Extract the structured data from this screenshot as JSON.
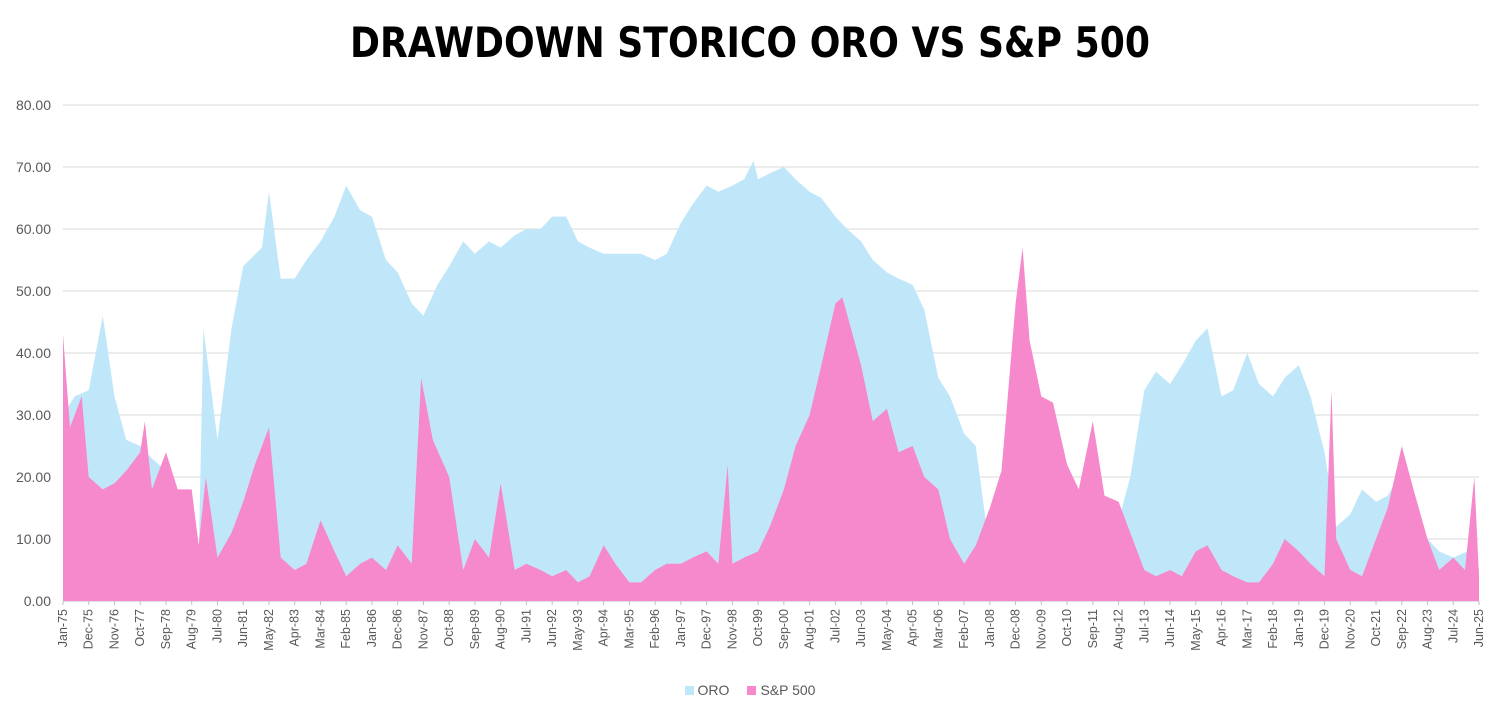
{
  "chart_data": {
    "type": "area",
    "title": "DRAWDOWN STORICO ORO VS S&P 500",
    "xlabel": "",
    "ylabel": "",
    "ylim": [
      0,
      80
    ],
    "yticks": [
      "0.00",
      "10.00",
      "20.00",
      "30.00",
      "40.00",
      "50.00",
      "60.00",
      "70.00",
      "80.00"
    ],
    "grid": true,
    "legend_position": "bottom",
    "x_start": "Jan-75",
    "x_end": "Jun-25",
    "x_tick_labels": [
      "Jan-75",
      "Dec-75",
      "Nov-76",
      "Oct-77",
      "Sep-78",
      "Aug-79",
      "Jul-80",
      "Jun-81",
      "May-82",
      "Apr-83",
      "Mar-84",
      "Feb-85",
      "Jan-86",
      "Dec-86",
      "Nov-87",
      "Oct-88",
      "Sep-89",
      "Aug-90",
      "Jul-91",
      "Jun-92",
      "May-93",
      "Apr-94",
      "Mar-95",
      "Feb-96",
      "Jan-97",
      "Dec-97",
      "Nov-98",
      "Oct-99",
      "Sep-00",
      "Aug-01",
      "Jul-02",
      "Jun-03",
      "May-04",
      "Apr-05",
      "Mar-06",
      "Feb-07",
      "Jan-08",
      "Dec-08",
      "Nov-09",
      "Oct-10",
      "Sep-11",
      "Aug-12",
      "Jul-13",
      "Jun-14",
      "May-15",
      "Apr-16",
      "Mar-17",
      "Feb-18",
      "Jan-19",
      "Dec-19",
      "Nov-20",
      "Oct-21",
      "Sep-22",
      "Aug-23",
      "Jul-24",
      "Jun-25"
    ],
    "series": [
      {
        "name": "ORO",
        "color": "#c0e7f9",
        "points": [
          [
            "Jan-75",
            30
          ],
          [
            "Jun-75",
            33
          ],
          [
            "Dec-75",
            34
          ],
          [
            "Jun-76",
            46
          ],
          [
            "Nov-76",
            33
          ],
          [
            "Apr-77",
            26
          ],
          [
            "Oct-77",
            25
          ],
          [
            "Mar-78",
            23
          ],
          [
            "Sep-78",
            21
          ],
          [
            "Feb-79",
            17
          ],
          [
            "Aug-79",
            14
          ],
          [
            "Nov-79",
            7
          ],
          [
            "Jan-80",
            44
          ],
          [
            "Mar-80",
            38
          ],
          [
            "Jul-80",
            26
          ],
          [
            "Jan-81",
            44
          ],
          [
            "Jun-81",
            54
          ],
          [
            "Feb-82",
            57
          ],
          [
            "May-82",
            66
          ],
          [
            "Oct-82",
            52
          ],
          [
            "Apr-83",
            52
          ],
          [
            "Sep-83",
            55
          ],
          [
            "Mar-84",
            58
          ],
          [
            "Sep-84",
            62
          ],
          [
            "Feb-85",
            67
          ],
          [
            "Aug-85",
            63
          ],
          [
            "Jan-86",
            62
          ],
          [
            "Jul-86",
            55
          ],
          [
            "Dec-86",
            53
          ],
          [
            "Jun-87",
            48
          ],
          [
            "Nov-87",
            46
          ],
          [
            "May-88",
            51
          ],
          [
            "Oct-88",
            54
          ],
          [
            "Apr-89",
            58
          ],
          [
            "Sep-89",
            56
          ],
          [
            "Mar-90",
            58
          ],
          [
            "Aug-90",
            57
          ],
          [
            "Feb-91",
            59
          ],
          [
            "Jul-91",
            60
          ],
          [
            "Jan-92",
            60
          ],
          [
            "Jun-92",
            62
          ],
          [
            "Dec-92",
            62
          ],
          [
            "May-93",
            58
          ],
          [
            "Oct-93",
            57
          ],
          [
            "Apr-94",
            56
          ],
          [
            "Sep-94",
            56
          ],
          [
            "Mar-95",
            56
          ],
          [
            "Aug-95",
            56
          ],
          [
            "Feb-96",
            55
          ],
          [
            "Jul-96",
            56
          ],
          [
            "Jan-97",
            61
          ],
          [
            "Jun-97",
            64
          ],
          [
            "Dec-97",
            67
          ],
          [
            "May-98",
            66
          ],
          [
            "Nov-98",
            67
          ],
          [
            "Apr-99",
            68
          ],
          [
            "Aug-99",
            71
          ],
          [
            "Oct-99",
            68
          ],
          [
            "Mar-00",
            69
          ],
          [
            "Sep-00",
            70
          ],
          [
            "Feb-01",
            68
          ],
          [
            "Aug-01",
            66
          ],
          [
            "Jan-02",
            65
          ],
          [
            "Jul-02",
            62
          ],
          [
            "Dec-02",
            60
          ],
          [
            "Jun-03",
            58
          ],
          [
            "Nov-03",
            55
          ],
          [
            "May-04",
            53
          ],
          [
            "Oct-04",
            52
          ],
          [
            "Apr-05",
            51
          ],
          [
            "Sep-05",
            47
          ],
          [
            "Mar-06",
            36
          ],
          [
            "Aug-06",
            33
          ],
          [
            "Feb-07",
            27
          ],
          [
            "Jul-07",
            25
          ],
          [
            "Jan-08",
            8
          ],
          [
            "Jun-08",
            17
          ],
          [
            "Dec-08",
            20
          ],
          [
            "May-09",
            17
          ],
          [
            "Nov-09",
            8
          ],
          [
            "Apr-10",
            5
          ],
          [
            "Oct-10",
            3
          ],
          [
            "Mar-11",
            2
          ],
          [
            "Sep-11",
            3
          ],
          [
            "Feb-12",
            4
          ],
          [
            "Aug-12",
            13
          ],
          [
            "Jan-13",
            20
          ],
          [
            "Jul-13",
            34
          ],
          [
            "Dec-13",
            37
          ],
          [
            "Jun-14",
            35
          ],
          [
            "Nov-14",
            38
          ],
          [
            "May-15",
            42
          ],
          [
            "Oct-15",
            44
          ],
          [
            "Apr-16",
            33
          ],
          [
            "Sep-16",
            34
          ],
          [
            "Mar-17",
            40
          ],
          [
            "Aug-17",
            35
          ],
          [
            "Feb-18",
            33
          ],
          [
            "Jul-18",
            36
          ],
          [
            "Jan-19",
            38
          ],
          [
            "Jun-19",
            33
          ],
          [
            "Dec-19",
            24
          ],
          [
            "May-20",
            12
          ],
          [
            "Nov-20",
            14
          ],
          [
            "Apr-21",
            18
          ],
          [
            "Oct-21",
            16
          ],
          [
            "Mar-22",
            17
          ],
          [
            "Sep-22",
            21
          ],
          [
            "Feb-23",
            15
          ],
          [
            "Aug-23",
            10
          ],
          [
            "Jan-24",
            8
          ],
          [
            "Jul-24",
            7
          ],
          [
            "Jan-25",
            8
          ],
          [
            "Jun-25",
            5
          ]
        ]
      },
      {
        "name": "S&P 500",
        "color": "#f689cb",
        "points": [
          [
            "Jan-75",
            43
          ],
          [
            "Apr-75",
            28
          ],
          [
            "Sep-75",
            33
          ],
          [
            "Dec-75",
            20
          ],
          [
            "Jun-76",
            18
          ],
          [
            "Nov-76",
            19
          ],
          [
            "Apr-77",
            21
          ],
          [
            "Oct-77",
            24
          ],
          [
            "Dec-77",
            29
          ],
          [
            "Mar-78",
            18
          ],
          [
            "Sep-78",
            24
          ],
          [
            "Feb-79",
            18
          ],
          [
            "Aug-79",
            18
          ],
          [
            "Nov-79",
            9
          ],
          [
            "Feb-80",
            20
          ],
          [
            "Jul-80",
            7
          ],
          [
            "Jan-81",
            11
          ],
          [
            "Jun-81",
            16
          ],
          [
            "Nov-81",
            22
          ],
          [
            "May-82",
            28
          ],
          [
            "Oct-82",
            7
          ],
          [
            "Apr-83",
            5
          ],
          [
            "Sep-83",
            6
          ],
          [
            "Mar-84",
            13
          ],
          [
            "Sep-84",
            8
          ],
          [
            "Feb-85",
            4
          ],
          [
            "Aug-85",
            6
          ],
          [
            "Jan-86",
            7
          ],
          [
            "Jul-86",
            5
          ],
          [
            "Dec-86",
            9
          ],
          [
            "Jun-87",
            6
          ],
          [
            "Oct-87",
            36
          ],
          [
            "Mar-88",
            26
          ],
          [
            "Oct-88",
            20
          ],
          [
            "Apr-89",
            5
          ],
          [
            "Sep-89",
            10
          ],
          [
            "Mar-90",
            7
          ],
          [
            "Aug-90",
            19
          ],
          [
            "Feb-91",
            5
          ],
          [
            "Jul-91",
            6
          ],
          [
            "Jan-92",
            5
          ],
          [
            "Jun-92",
            4
          ],
          [
            "Dec-92",
            5
          ],
          [
            "May-93",
            3
          ],
          [
            "Oct-93",
            4
          ],
          [
            "Apr-94",
            9
          ],
          [
            "Sep-94",
            6
          ],
          [
            "Mar-95",
            3
          ],
          [
            "Aug-95",
            3
          ],
          [
            "Feb-96",
            5
          ],
          [
            "Jul-96",
            6
          ],
          [
            "Jan-97",
            6
          ],
          [
            "Jun-97",
            7
          ],
          [
            "Dec-97",
            8
          ],
          [
            "May-98",
            6
          ],
          [
            "Sep-98",
            22
          ],
          [
            "Nov-98",
            6
          ],
          [
            "Apr-99",
            7
          ],
          [
            "Oct-99",
            8
          ],
          [
            "Mar-00",
            12
          ],
          [
            "Sep-00",
            18
          ],
          [
            "Feb-01",
            25
          ],
          [
            "Aug-01",
            30
          ],
          [
            "Jan-02",
            38
          ],
          [
            "Jul-02",
            48
          ],
          [
            "Oct-02",
            49
          ],
          [
            "Jun-03",
            38
          ],
          [
            "Nov-03",
            29
          ],
          [
            "May-04",
            31
          ],
          [
            "Oct-04",
            24
          ],
          [
            "Apr-05",
            25
          ],
          [
            "Sep-05",
            20
          ],
          [
            "Mar-06",
            18
          ],
          [
            "Aug-06",
            10
          ],
          [
            "Feb-07",
            6
          ],
          [
            "Jul-07",
            9
          ],
          [
            "Jan-08",
            15
          ],
          [
            "Jun-08",
            21
          ],
          [
            "Dec-08",
            48
          ],
          [
            "Mar-09",
            57
          ],
          [
            "Jun-09",
            42
          ],
          [
            "Nov-09",
            33
          ],
          [
            "Apr-10",
            32
          ],
          [
            "Oct-10",
            22
          ],
          [
            "Mar-11",
            18
          ],
          [
            "Sep-11",
            29
          ],
          [
            "Feb-12",
            17
          ],
          [
            "Aug-12",
            16
          ],
          [
            "Jan-13",
            11
          ],
          [
            "Jul-13",
            5
          ],
          [
            "Dec-13",
            4
          ],
          [
            "Jun-14",
            5
          ],
          [
            "Nov-14",
            4
          ],
          [
            "May-15",
            8
          ],
          [
            "Oct-15",
            9
          ],
          [
            "Apr-16",
            5
          ],
          [
            "Sep-16",
            4
          ],
          [
            "Mar-17",
            3
          ],
          [
            "Aug-17",
            3
          ],
          [
            "Feb-18",
            6
          ],
          [
            "Jul-18",
            10
          ],
          [
            "Jan-19",
            8
          ],
          [
            "Jun-19",
            6
          ],
          [
            "Dec-19",
            4
          ],
          [
            "Mar-20",
            34
          ],
          [
            "May-20",
            10
          ],
          [
            "Nov-20",
            5
          ],
          [
            "Apr-21",
            4
          ],
          [
            "Oct-21",
            10
          ],
          [
            "Mar-22",
            15
          ],
          [
            "Sep-22",
            25
          ],
          [
            "Feb-23",
            18
          ],
          [
            "Aug-23",
            10
          ],
          [
            "Jan-24",
            5
          ],
          [
            "Jul-24",
            7
          ],
          [
            "Dec-24",
            5
          ],
          [
            "Apr-25",
            20
          ],
          [
            "Jun-25",
            4
          ]
        ]
      }
    ]
  }
}
